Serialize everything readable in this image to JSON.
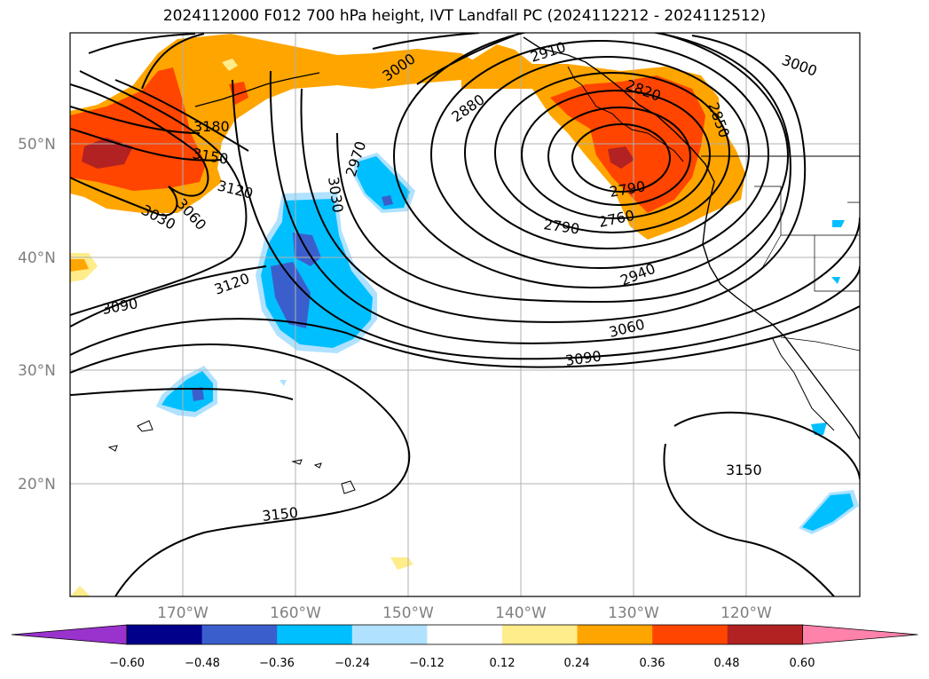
{
  "title": "2024112000 F012 700 hPa height, IVT Landfall PC (2024112212 - 2024112512)",
  "latitude_labels": [
    "50°N",
    "40°N",
    "30°N",
    "20°N"
  ],
  "longitude_labels": [
    "170°W",
    "160°W",
    "150°W",
    "140°W",
    "130°W",
    "120°W"
  ],
  "contour_labels": [
    "3180",
    "3150",
    "3120",
    "3030",
    "3060",
    "3000",
    "2910",
    "2880",
    "2970",
    "3030",
    "3120",
    "3090",
    "2820",
    "2850",
    "3000",
    "2790",
    "2790",
    "2760",
    "2940",
    "3060",
    "3090",
    "3150",
    "3150"
  ],
  "colorbar": {
    "tick_labels": [
      "−0.60",
      "−0.48",
      "−0.36",
      "−0.24",
      "−0.12",
      "0.12",
      "0.24",
      "0.36",
      "0.48",
      "0.60"
    ],
    "colors": [
      "#9a32cd",
      "#00008b",
      "#3a5fcd",
      "#00bfff",
      "#b0e2ff",
      "#ffffff",
      "#ffec8b",
      "#ffa500",
      "#ff4500",
      "#b22222",
      "#ff82ab"
    ]
  },
  "colors": {
    "negative_strong": "#3a5fcd",
    "negative": "#00bfff",
    "negative_weak": "#b0e2ff",
    "positive_weak": "#ffec8b",
    "positive": "#ffa500",
    "positive_strong": "#ff4500",
    "positive_max": "#b22222",
    "gridline": "#b0b0b0"
  }
}
